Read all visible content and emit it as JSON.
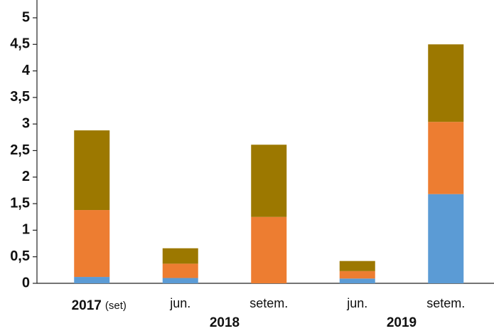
{
  "chart_data": {
    "type": "stacked_bar",
    "categories": [
      "(set)",
      "jun.",
      "setem.",
      "jun.",
      "setem."
    ],
    "groups": [
      {
        "label": "2017",
        "count": 1
      },
      {
        "label": "2018",
        "count": 2
      },
      {
        "label": "2019",
        "count": 2
      }
    ],
    "series": [
      {
        "color": "#5b9bd5",
        "values": [
          0.12,
          0.1,
          0,
          0.09,
          1.68
        ]
      },
      {
        "color": "#ed7d31",
        "values": [
          1.26,
          0.27,
          1.25,
          0.14,
          1.36
        ]
      },
      {
        "color": "#9c7800",
        "values": [
          1.5,
          0.29,
          1.36,
          0.19,
          1.46
        ]
      }
    ],
    "ylim": [
      0,
      5
    ],
    "yticks": [
      0,
      {
        "value": 0.5,
        "label": "0,5"
      },
      1,
      {
        "value": 1.5,
        "label": "1,5"
      },
      2,
      {
        "value": 2.5,
        "label": "2,5"
      },
      3,
      {
        "value": 3.5,
        "label": "3,5"
      },
      4,
      {
        "value": 4.5,
        "label": "4,5"
      },
      5
    ],
    "grid": false
  }
}
